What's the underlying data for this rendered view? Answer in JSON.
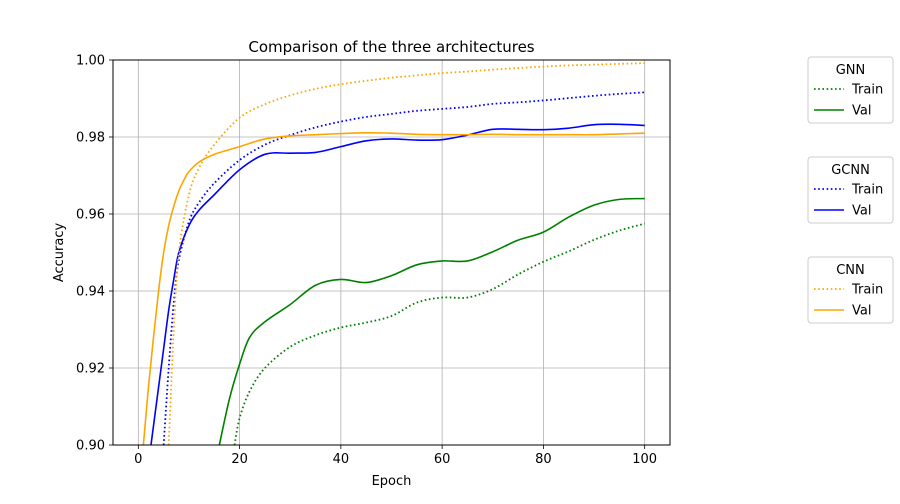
{
  "chart_data": {
    "type": "line",
    "title": "Comparison of the three architectures",
    "xlabel": "Epoch",
    "ylabel": "Accuracy",
    "xlim": [
      -5,
      105
    ],
    "ylim": [
      0.9,
      1.0
    ],
    "xticks": [
      0,
      20,
      40,
      60,
      80,
      100
    ],
    "yticks": [
      0.9,
      0.92,
      0.94,
      0.96,
      0.98,
      1.0
    ],
    "xtick_labels": [
      "0",
      "20",
      "40",
      "60",
      "80",
      "100"
    ],
    "ytick_labels": [
      "0.90",
      "0.92",
      "0.94",
      "0.96",
      "0.98",
      "1.00"
    ],
    "grid": true,
    "legend_placement": "outside-right",
    "legends": [
      {
        "title": "GNN",
        "entries": [
          {
            "label": "Train",
            "color": "#008000",
            "style": "dotted"
          },
          {
            "label": "Val",
            "color": "#008000",
            "style": "solid"
          }
        ]
      },
      {
        "title": "GCNN",
        "entries": [
          {
            "label": "Train",
            "color": "#0000ff",
            "style": "dotted"
          },
          {
            "label": "Val",
            "color": "#0000ff",
            "style": "solid"
          }
        ]
      },
      {
        "title": "CNN",
        "entries": [
          {
            "label": "Train",
            "color": "#ffa500",
            "style": "dotted"
          },
          {
            "label": "Val",
            "color": "#ffa500",
            "style": "solid"
          }
        ]
      }
    ],
    "series": [
      {
        "group": "GNN",
        "name": "Train",
        "color": "#008000",
        "style": "dotted",
        "x": [
          19,
          20,
          22,
          25,
          30,
          35,
          40,
          45,
          50,
          55,
          60,
          65,
          70,
          75,
          80,
          85,
          90,
          95,
          100
        ],
        "y": [
          0.9,
          0.907,
          0.914,
          0.92,
          0.9255,
          0.9285,
          0.9305,
          0.9318,
          0.9335,
          0.937,
          0.9383,
          0.9383,
          0.9405,
          0.9443,
          0.9476,
          0.9503,
          0.9533,
          0.9557,
          0.9575
        ]
      },
      {
        "group": "GNN",
        "name": "Val",
        "color": "#008000",
        "style": "solid",
        "x": [
          16,
          18,
          20,
          22,
          25,
          30,
          35,
          40,
          45,
          50,
          55,
          60,
          65,
          70,
          75,
          80,
          85,
          90,
          95,
          100
        ],
        "y": [
          0.9,
          0.912,
          0.921,
          0.928,
          0.932,
          0.9365,
          0.9415,
          0.943,
          0.9422,
          0.944,
          0.9468,
          0.9478,
          0.9478,
          0.9502,
          0.9532,
          0.9553,
          0.9592,
          0.9623,
          0.9638,
          0.964
        ]
      },
      {
        "group": "GCNN",
        "name": "Train",
        "color": "#0000ff",
        "style": "dotted",
        "x": [
          5,
          6,
          7,
          8,
          10,
          12,
          15,
          20,
          25,
          30,
          35,
          40,
          45,
          50,
          55,
          60,
          65,
          70,
          75,
          80,
          85,
          90,
          95,
          100
        ],
        "y": [
          0.9,
          0.92,
          0.937,
          0.948,
          0.958,
          0.963,
          0.968,
          0.974,
          0.978,
          0.9805,
          0.9825,
          0.984,
          0.9852,
          0.986,
          0.9868,
          0.9873,
          0.9878,
          0.9886,
          0.989,
          0.9895,
          0.9901,
          0.9907,
          0.9912,
          0.9916
        ]
      },
      {
        "group": "GCNN",
        "name": "Val",
        "color": "#0000ff",
        "style": "solid",
        "x": [
          2.5,
          4,
          5,
          6,
          7,
          8,
          10,
          12,
          15,
          20,
          25,
          30,
          35,
          40,
          45,
          50,
          55,
          60,
          65,
          70,
          75,
          80,
          85,
          90,
          95,
          100
        ],
        "y": [
          0.9,
          0.915,
          0.925,
          0.935,
          0.943,
          0.95,
          0.957,
          0.961,
          0.965,
          0.9715,
          0.9755,
          0.9758,
          0.976,
          0.9775,
          0.979,
          0.9795,
          0.9792,
          0.9793,
          0.9805,
          0.982,
          0.982,
          0.9819,
          0.9823,
          0.9832,
          0.9833,
          0.983
        ]
      },
      {
        "group": "CNN",
        "name": "Train",
        "color": "#ffa500",
        "style": "dotted",
        "x": [
          6,
          7,
          8,
          10,
          12,
          15,
          20,
          25,
          30,
          35,
          40,
          45,
          50,
          55,
          60,
          65,
          70,
          75,
          80,
          85,
          90,
          95,
          100
        ],
        "y": [
          0.9,
          0.93,
          0.95,
          0.965,
          0.972,
          0.978,
          0.985,
          0.9885,
          0.9908,
          0.9925,
          0.9937,
          0.9946,
          0.9954,
          0.996,
          0.9966,
          0.997,
          0.9975,
          0.9979,
          0.9983,
          0.9986,
          0.9988,
          0.999,
          0.9992
        ]
      },
      {
        "group": "CNN",
        "name": "Val",
        "color": "#ffa500",
        "style": "solid",
        "x": [
          1,
          2,
          3,
          4,
          5,
          6,
          7,
          8,
          9,
          10,
          12,
          15,
          20,
          25,
          30,
          35,
          40,
          45,
          50,
          55,
          60,
          65,
          70,
          75,
          80,
          85,
          90,
          95,
          100
        ],
        "y": [
          0.9,
          0.915,
          0.928,
          0.94,
          0.95,
          0.957,
          0.962,
          0.966,
          0.9688,
          0.971,
          0.9735,
          0.9755,
          0.9775,
          0.9795,
          0.9803,
          0.9806,
          0.9809,
          0.9811,
          0.981,
          0.9807,
          0.9806,
          0.9806,
          0.9807,
          0.9806,
          0.9806,
          0.9806,
          0.9806,
          0.9808,
          0.981
        ]
      }
    ]
  }
}
